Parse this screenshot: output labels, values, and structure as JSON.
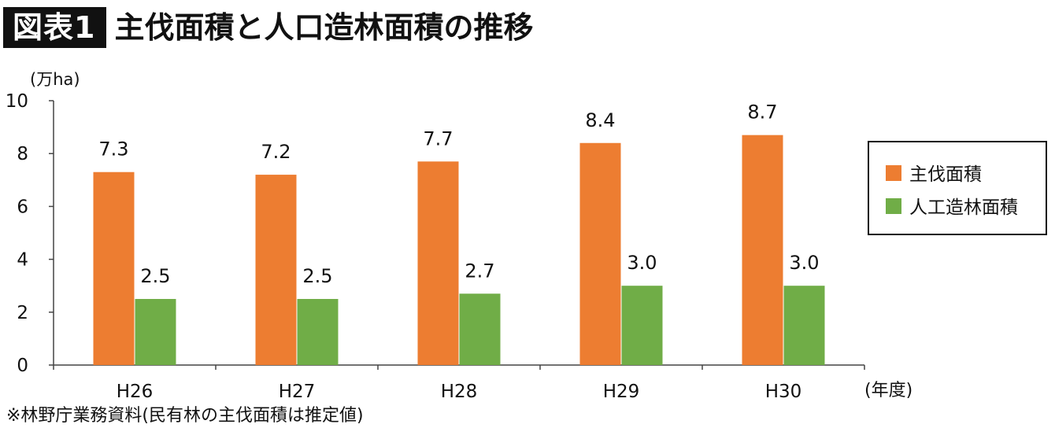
{
  "header": {
    "badge": "図表1",
    "title": "主伐面積と人口造林面積の推移"
  },
  "footnote": "※林野庁業務資料(民有林の主伐面積は推定値)",
  "colors": {
    "harvest": "#ED7D31",
    "planting": "#70AD47",
    "axis": "#444444"
  },
  "chart_data": {
    "type": "bar",
    "title": "主伐面積と人口造林面積の推移",
    "ylabel": "(万ha)",
    "xlabel": "(年度)",
    "categories": [
      "H26",
      "H27",
      "H28",
      "H29",
      "H30"
    ],
    "series": [
      {
        "name": "主伐面積",
        "values": [
          7.3,
          7.2,
          7.7,
          8.4,
          8.7
        ],
        "labels": [
          "7.3",
          "7.2",
          "7.7",
          "8.4",
          "8.7"
        ]
      },
      {
        "name": "人工造林面積",
        "values": [
          2.5,
          2.5,
          2.7,
          3.0,
          3.0
        ],
        "labels": [
          "2.5",
          "2.5",
          "2.7",
          "3.0",
          "3.0"
        ]
      }
    ],
    "ylim": [
      0,
      10
    ],
    "yticks": [
      0,
      2,
      4,
      6,
      8,
      10
    ],
    "grid": false,
    "legend_position": "right"
  }
}
